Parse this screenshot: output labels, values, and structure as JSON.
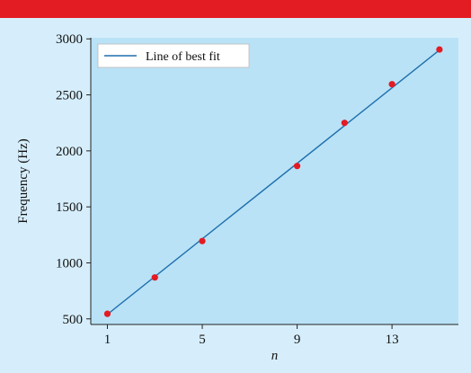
{
  "colors": {
    "background": "#d6eefb",
    "top_bar": "#e31b23",
    "plot_area": "#b9e2f6",
    "fit_line": "#1f6fae",
    "points": "#e31b23",
    "legend_bg": "#ffffff"
  },
  "chart_data": {
    "type": "scatter",
    "xlabel": "n",
    "ylabel": "Frequency (Hz)",
    "xlim": [
      0.3,
      15.8
    ],
    "ylim": [
      450,
      3010
    ],
    "xticks": [
      1,
      5,
      9,
      13
    ],
    "yticks": [
      500,
      1000,
      1500,
      2000,
      2500,
      3000
    ],
    "grid": false,
    "legend_position": "top-left",
    "points": [
      {
        "x": 1,
        "y": 545
      },
      {
        "x": 3,
        "y": 870
      },
      {
        "x": 5,
        "y": 1195
      },
      {
        "x": 9,
        "y": 1865
      },
      {
        "x": 11,
        "y": 2250
      },
      {
        "x": 13,
        "y": 2595
      },
      {
        "x": 15,
        "y": 2905
      }
    ],
    "fit_line": {
      "name": "Line of best fit",
      "x": [
        1,
        15
      ],
      "y": [
        540,
        2900
      ]
    }
  }
}
